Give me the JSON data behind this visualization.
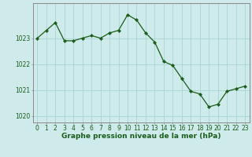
{
  "hours": [
    0,
    1,
    2,
    3,
    4,
    5,
    6,
    7,
    8,
    9,
    10,
    11,
    12,
    13,
    14,
    15,
    16,
    17,
    18,
    19,
    20,
    21,
    22,
    23
  ],
  "pressure": [
    1023.0,
    1023.3,
    1023.6,
    1022.9,
    1022.9,
    1023.0,
    1023.1,
    1023.0,
    1023.2,
    1023.3,
    1023.9,
    1023.7,
    1023.2,
    1022.85,
    1022.1,
    1021.95,
    1021.45,
    1020.95,
    1020.85,
    1020.35,
    1020.45,
    1020.95,
    1021.05,
    1021.15
  ],
  "line_color": "#1a5c1a",
  "marker_color": "#1a5c1a",
  "bg_color": "#ceeaea",
  "grid_color": "#a8d4d4",
  "axis_label_color": "#1a5c1a",
  "tick_color": "#1a5c1a",
  "border_color": "#888888",
  "title": "Graphe pression niveau de la mer (hPa)",
  "ylim": [
    1019.75,
    1024.35
  ],
  "yticks": [
    1020,
    1021,
    1022,
    1023
  ],
  "tick_fontsize": 5.5,
  "xlabel_fontsize": 6.5
}
